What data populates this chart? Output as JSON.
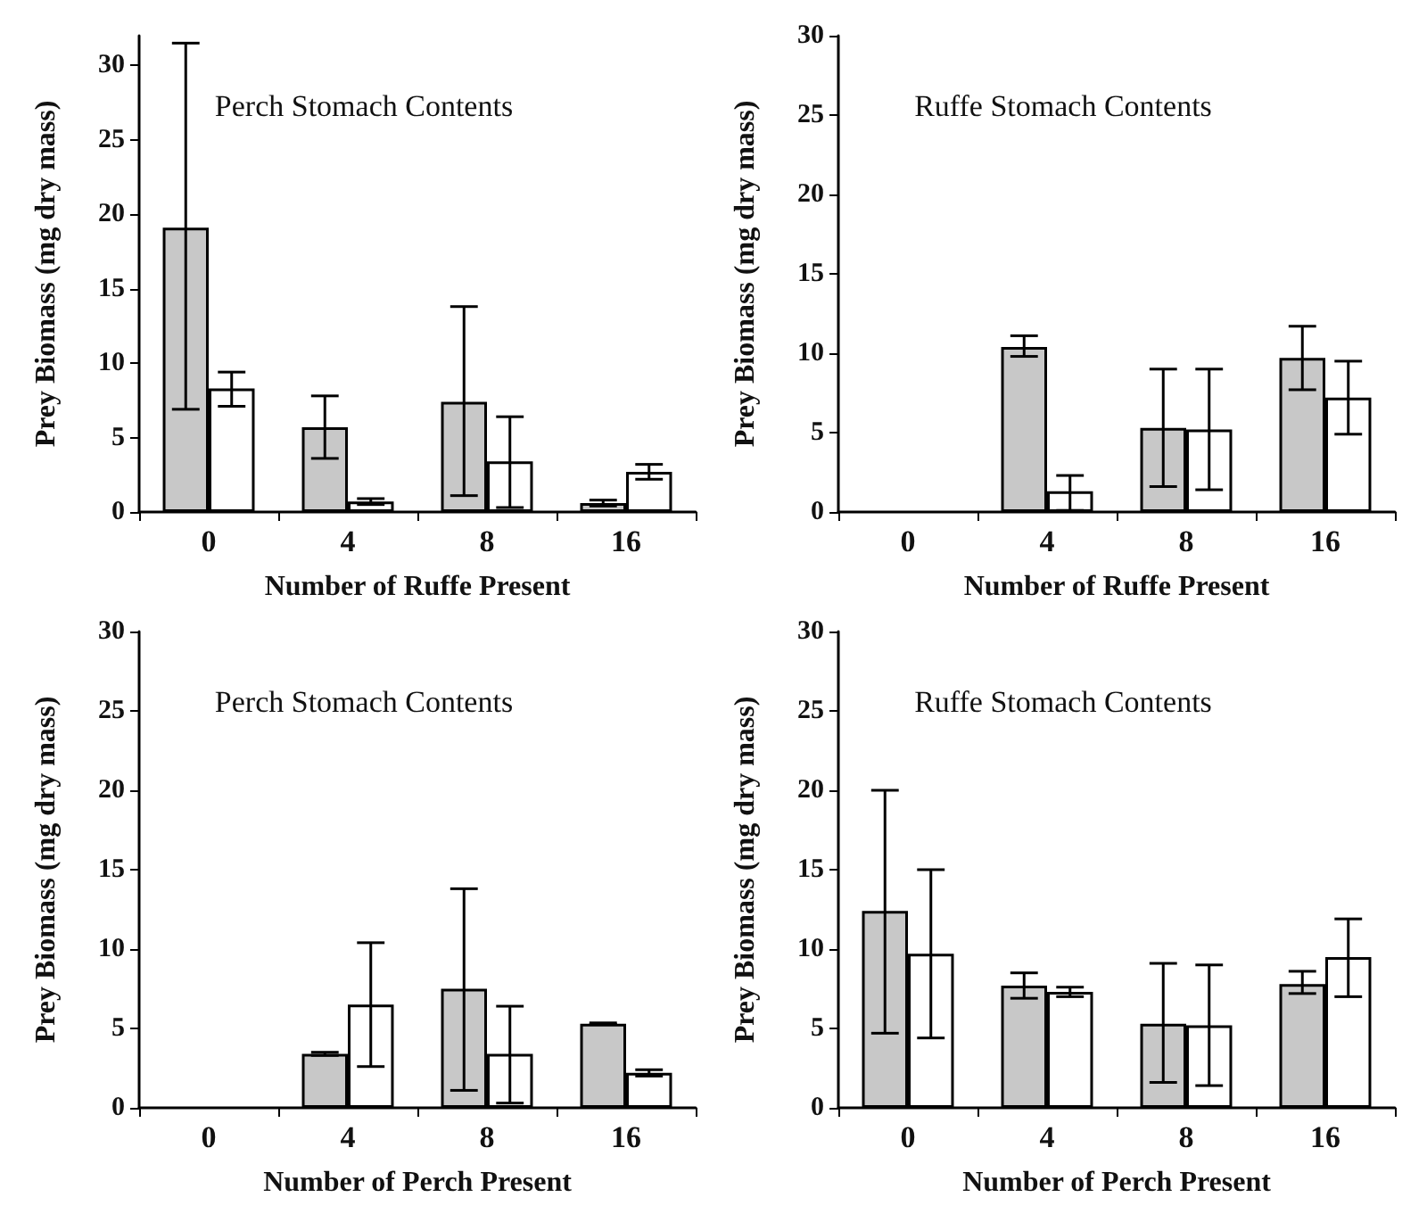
{
  "chart_data": [
    {
      "type": "bar",
      "title": "Perch Stomach Contents",
      "xlabel": "Number of Ruffe Present",
      "ylabel": "Prey Biomass (mg dry mass)",
      "categories": [
        "0",
        "4",
        "8",
        "16"
      ],
      "ylim": [
        0,
        32
      ],
      "yticks": [
        0,
        5,
        10,
        15,
        20,
        25,
        30
      ],
      "grid": false,
      "series": [
        {
          "color": "#c8c8c8",
          "values": [
            19.1,
            5.7,
            7.4,
            0.6
          ],
          "errors": [
            [
              6.9,
              31.5
            ],
            [
              3.6,
              7.8
            ],
            [
              1.1,
              13.8
            ],
            [
              0.4,
              0.8
            ]
          ]
        },
        {
          "color": "#ffffff",
          "values": [
            8.3,
            0.7,
            3.4,
            2.7
          ],
          "errors": [
            [
              7.1,
              9.4
            ],
            [
              0.5,
              0.9
            ],
            [
              0.3,
              6.4
            ],
            [
              2.2,
              3.2
            ]
          ]
        }
      ]
    },
    {
      "type": "bar",
      "title": "Ruffe Stomach Contents",
      "xlabel": "Number of Ruffe Present",
      "ylabel": "Prey Biomass (mg dry mass)",
      "categories": [
        "0",
        "4",
        "8",
        "16"
      ],
      "ylim": [
        0,
        30
      ],
      "yticks": [
        0,
        5,
        10,
        15,
        20,
        25,
        30
      ],
      "grid": false,
      "series": [
        {
          "color": "#c8c8c8",
          "values": [
            null,
            10.4,
            5.3,
            9.7
          ],
          "errors": [
            null,
            [
              9.8,
              11.1
            ],
            [
              1.6,
              9.0
            ],
            [
              7.7,
              11.7
            ]
          ]
        },
        {
          "color": "#ffffff",
          "values": [
            null,
            1.3,
            5.2,
            7.2
          ],
          "errors": [
            null,
            [
              0.1,
              2.3
            ],
            [
              1.4,
              9.0
            ],
            [
              4.9,
              9.5
            ]
          ]
        }
      ]
    },
    {
      "type": "bar",
      "title": "Perch Stomach Contents",
      "xlabel": "Number of Perch Present",
      "ylabel": "Prey Biomass (mg dry mass)",
      "categories": [
        "0",
        "4",
        "8",
        "16"
      ],
      "ylim": [
        0,
        30
      ],
      "yticks": [
        0,
        5,
        10,
        15,
        20,
        25,
        30
      ],
      "grid": false,
      "series": [
        {
          "color": "#c8c8c8",
          "values": [
            null,
            3.4,
            7.5,
            5.3
          ],
          "errors": [
            null,
            [
              3.3,
              3.5
            ],
            [
              1.1,
              13.8
            ],
            [
              5.25,
              5.35
            ]
          ]
        },
        {
          "color": "#ffffff",
          "values": [
            null,
            6.5,
            3.4,
            2.2
          ],
          "errors": [
            null,
            [
              2.6,
              10.4
            ],
            [
              0.3,
              6.4
            ],
            [
              2.0,
              2.4
            ]
          ]
        }
      ]
    },
    {
      "type": "bar",
      "title": "Ruffe Stomach Contents",
      "xlabel": "Number of Perch Present",
      "ylabel": "Prey Biomass (mg dry mass)",
      "categories": [
        "0",
        "4",
        "8",
        "16"
      ],
      "ylim": [
        0,
        30
      ],
      "yticks": [
        0,
        5,
        10,
        15,
        20,
        25,
        30
      ],
      "grid": false,
      "series": [
        {
          "color": "#c8c8c8",
          "values": [
            12.4,
            7.7,
            5.3,
            7.8
          ],
          "errors": [
            [
              4.7,
              20.0
            ],
            [
              6.9,
              8.5
            ],
            [
              1.6,
              9.1
            ],
            [
              7.2,
              8.6
            ]
          ]
        },
        {
          "color": "#ffffff",
          "values": [
            9.7,
            7.3,
            5.2,
            9.5
          ],
          "errors": [
            [
              4.4,
              15.0
            ],
            [
              7.0,
              7.6
            ],
            [
              1.4,
              9.0
            ],
            [
              7.0,
              11.9
            ]
          ]
        }
      ]
    }
  ]
}
